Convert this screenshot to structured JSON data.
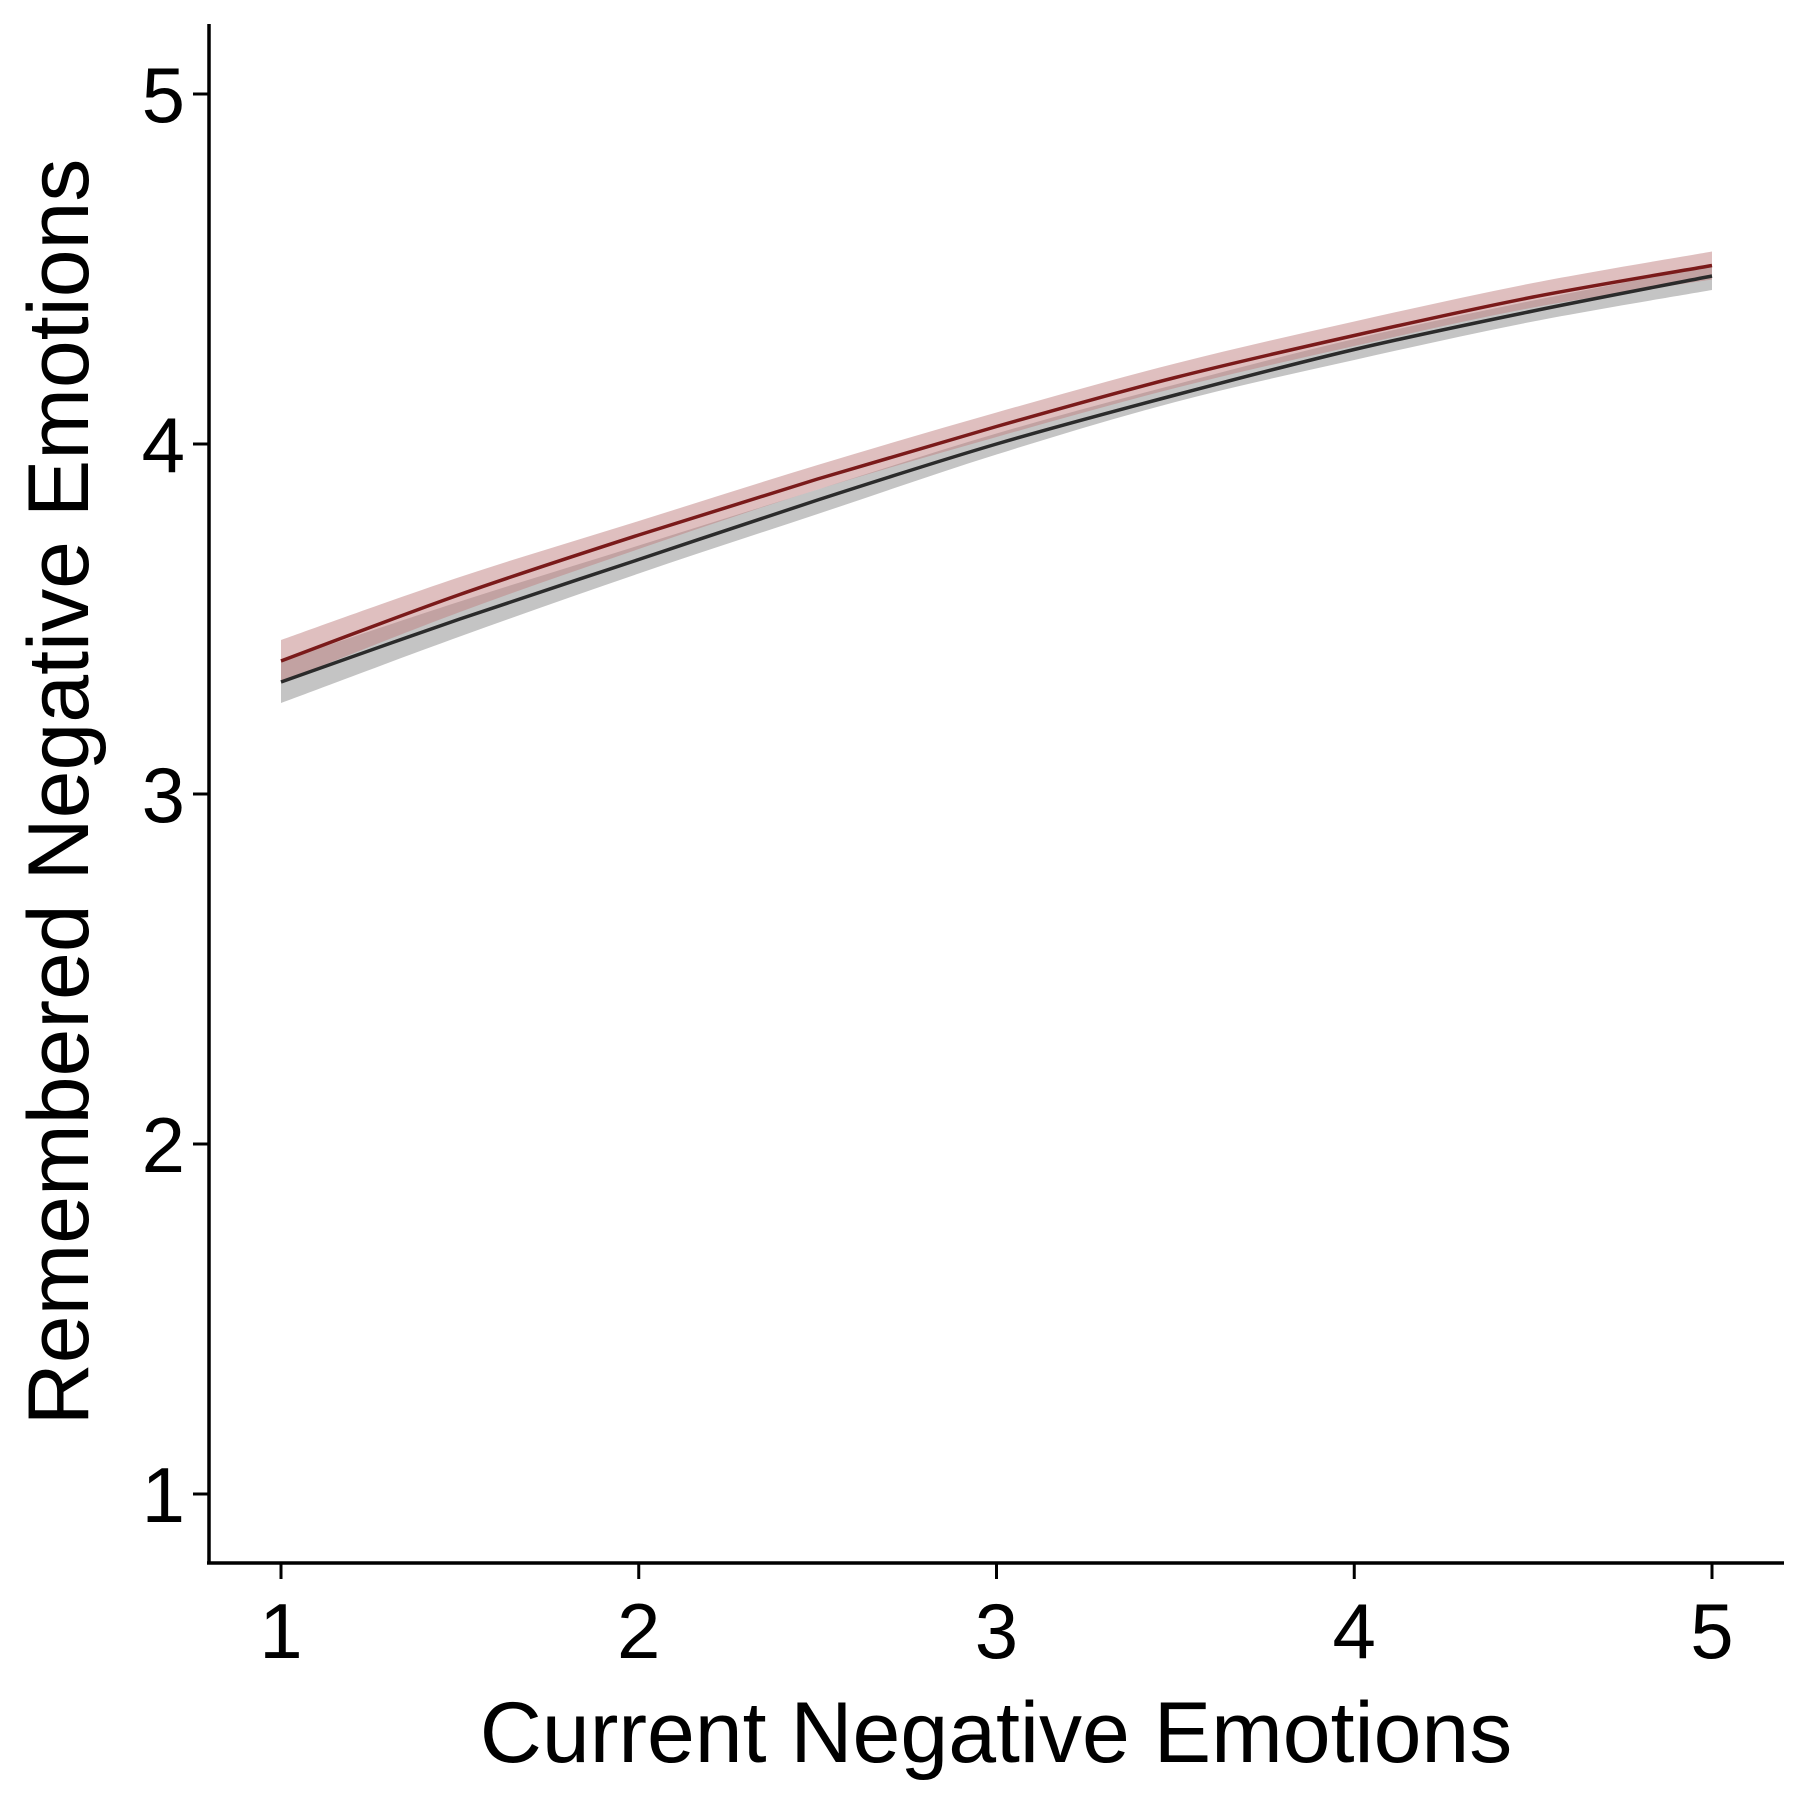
{
  "chart_data": {
    "type": "line",
    "title": "",
    "xlabel": "Current Negative Emotions",
    "ylabel": "Remembered Negative Emotions",
    "xlim": [
      0.8,
      5.2
    ],
    "ylim": [
      0.8,
      5.2
    ],
    "x_ticks": [
      1,
      2,
      3,
      4,
      5
    ],
    "y_ticks": [
      1,
      2,
      3,
      4,
      5
    ],
    "x_tick_labels": [
      "1",
      "2",
      "3",
      "4",
      "5"
    ],
    "y_tick_labels": [
      "1",
      "2",
      "3",
      "4",
      "5"
    ],
    "grid": false,
    "legend": "none",
    "series": [
      {
        "color": "#2b2b2b",
        "band_color": "#8a8a8a",
        "x": [
          1,
          1.5,
          2,
          2.5,
          3,
          3.5,
          4,
          4.5,
          5
        ],
        "y": [
          3.32,
          3.5,
          3.67,
          3.84,
          4.0,
          4.14,
          4.27,
          4.38,
          4.48
        ],
        "lower": [
          3.26,
          3.45,
          3.63,
          3.8,
          3.97,
          4.12,
          4.24,
          4.35,
          4.44
        ],
        "upper": [
          3.38,
          3.55,
          3.71,
          3.87,
          4.03,
          4.17,
          4.3,
          4.41,
          4.51
        ]
      },
      {
        "color": "#7a1a1a",
        "band_color": "#c07f7f",
        "x": [
          1,
          1.5,
          2,
          2.5,
          3,
          3.5,
          4,
          4.5,
          5
        ],
        "y": [
          3.38,
          3.57,
          3.74,
          3.9,
          4.05,
          4.19,
          4.31,
          4.42,
          4.51
        ],
        "lower": [
          3.32,
          3.52,
          3.7,
          3.87,
          4.02,
          4.16,
          4.28,
          4.39,
          4.47
        ],
        "upper": [
          3.44,
          3.62,
          3.78,
          3.94,
          4.09,
          4.23,
          4.35,
          4.46,
          4.55
        ]
      }
    ]
  }
}
